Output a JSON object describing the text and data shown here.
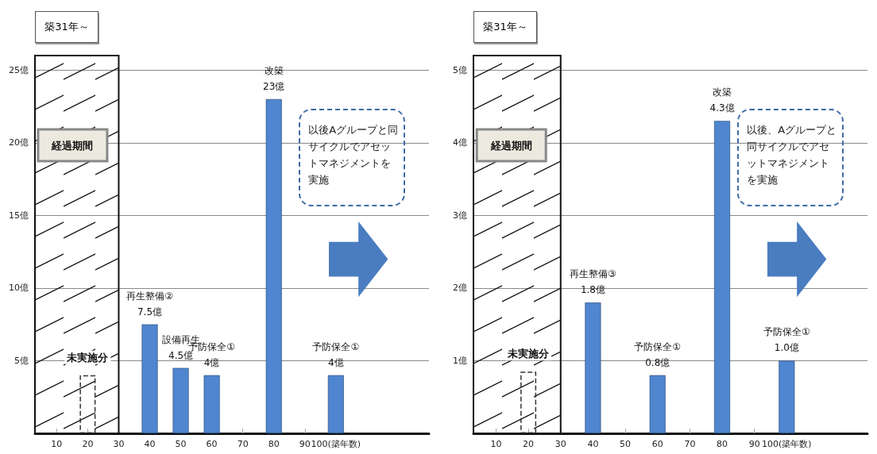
{
  "chart_data": [
    {
      "type": "bar",
      "xlim": [
        3,
        130
      ],
      "ylim": [
        0,
        26
      ],
      "xticks": [
        10,
        20,
        30,
        40,
        50,
        60,
        70,
        80,
        90,
        {
          "value": 100,
          "label": "100(築年数)"
        }
      ],
      "yticks": [
        {
          "value": 5,
          "label": "5億"
        },
        {
          "value": 10,
          "label": "10億"
        },
        {
          "value": 15,
          "label": "15億"
        },
        {
          "value": 20,
          "label": "20億"
        },
        {
          "value": 25,
          "label": "25億"
        }
      ],
      "grid": "y",
      "legend": false,
      "series": [
        {
          "color": "#4f86cf",
          "x": [
            40,
            50,
            60,
            80,
            100
          ],
          "values": [
            7.5,
            4.5,
            4,
            23,
            4
          ],
          "value_labels": [
            "再生整備②\n7.5億",
            "設備再生\n4.5億",
            "予防保全①\n4億",
            "改築\n23億",
            "予防保全①\n4億"
          ]
        },
        {
          "name": "未実施分",
          "color": "#333333",
          "line_style": "dashed",
          "x": [
            20
          ],
          "values": [
            4
          ]
        }
      ],
      "bands": [
        {
          "axis": "x",
          "from": 3,
          "to": 30,
          "label": "経過期間"
        }
      ],
      "annotations": [
        "築31年～",
        "以後Aグループと同サイクルでアセットマネジメントを実施"
      ]
    },
    {
      "type": "bar",
      "xlim": [
        3,
        125
      ],
      "ylim": [
        0,
        5.2
      ],
      "xticks": [
        10,
        20,
        30,
        40,
        50,
        60,
        70,
        80,
        90,
        {
          "value": 100,
          "label": "100(築年数)"
        }
      ],
      "yticks": [
        {
          "value": 1,
          "label": "1億"
        },
        {
          "value": 2,
          "label": "2億"
        },
        {
          "value": 3,
          "label": "3億"
        },
        {
          "value": 4,
          "label": "4億"
        },
        {
          "value": 5,
          "label": "5億"
        }
      ],
      "grid": "y",
      "legend": false,
      "series": [
        {
          "color": "#4f86cf",
          "x": [
            40,
            60,
            80,
            100
          ],
          "values": [
            1.8,
            0.8,
            4.3,
            1.0
          ],
          "value_labels": [
            "再生整備③\n1.8億",
            "予防保全①\n0.8億",
            "改築\n4.3億",
            "予防保全①\n1.0億"
          ]
        },
        {
          "name": "未実施分",
          "color": "#333333",
          "line_style": "dashed",
          "x": [
            20
          ],
          "values": [
            0.85
          ]
        }
      ],
      "bands": [
        {
          "axis": "x",
          "from": 3,
          "to": 30,
          "label": "経過期間"
        }
      ],
      "annotations": [
        "築31年～",
        "以後、Aグループと同サイクルでアセットマネジメントを実施"
      ]
    }
  ]
}
